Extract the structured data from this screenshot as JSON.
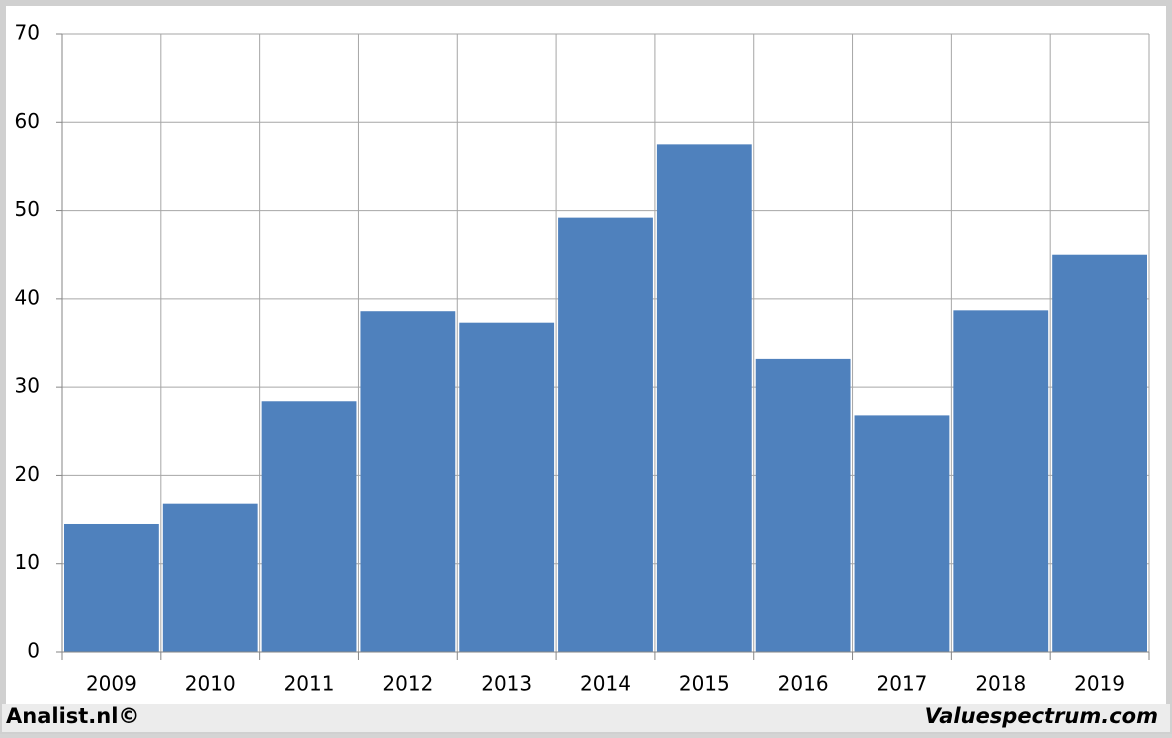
{
  "chart_data": {
    "type": "bar",
    "categories": [
      "2009",
      "2010",
      "2011",
      "2012",
      "2013",
      "2014",
      "2015",
      "2016",
      "2017",
      "2018",
      "2019"
    ],
    "values": [
      14.5,
      16.8,
      28.4,
      38.6,
      37.3,
      49.2,
      57.5,
      33.2,
      26.8,
      38.7,
      45.0
    ],
    "color": "#4f81bd",
    "ylim": [
      0,
      70
    ],
    "yticks": [
      0,
      10,
      20,
      30,
      40,
      50,
      60,
      70
    ],
    "grid": true
  },
  "footer": {
    "left": "Analist.nl©",
    "right": "Valuespectrum.com"
  }
}
